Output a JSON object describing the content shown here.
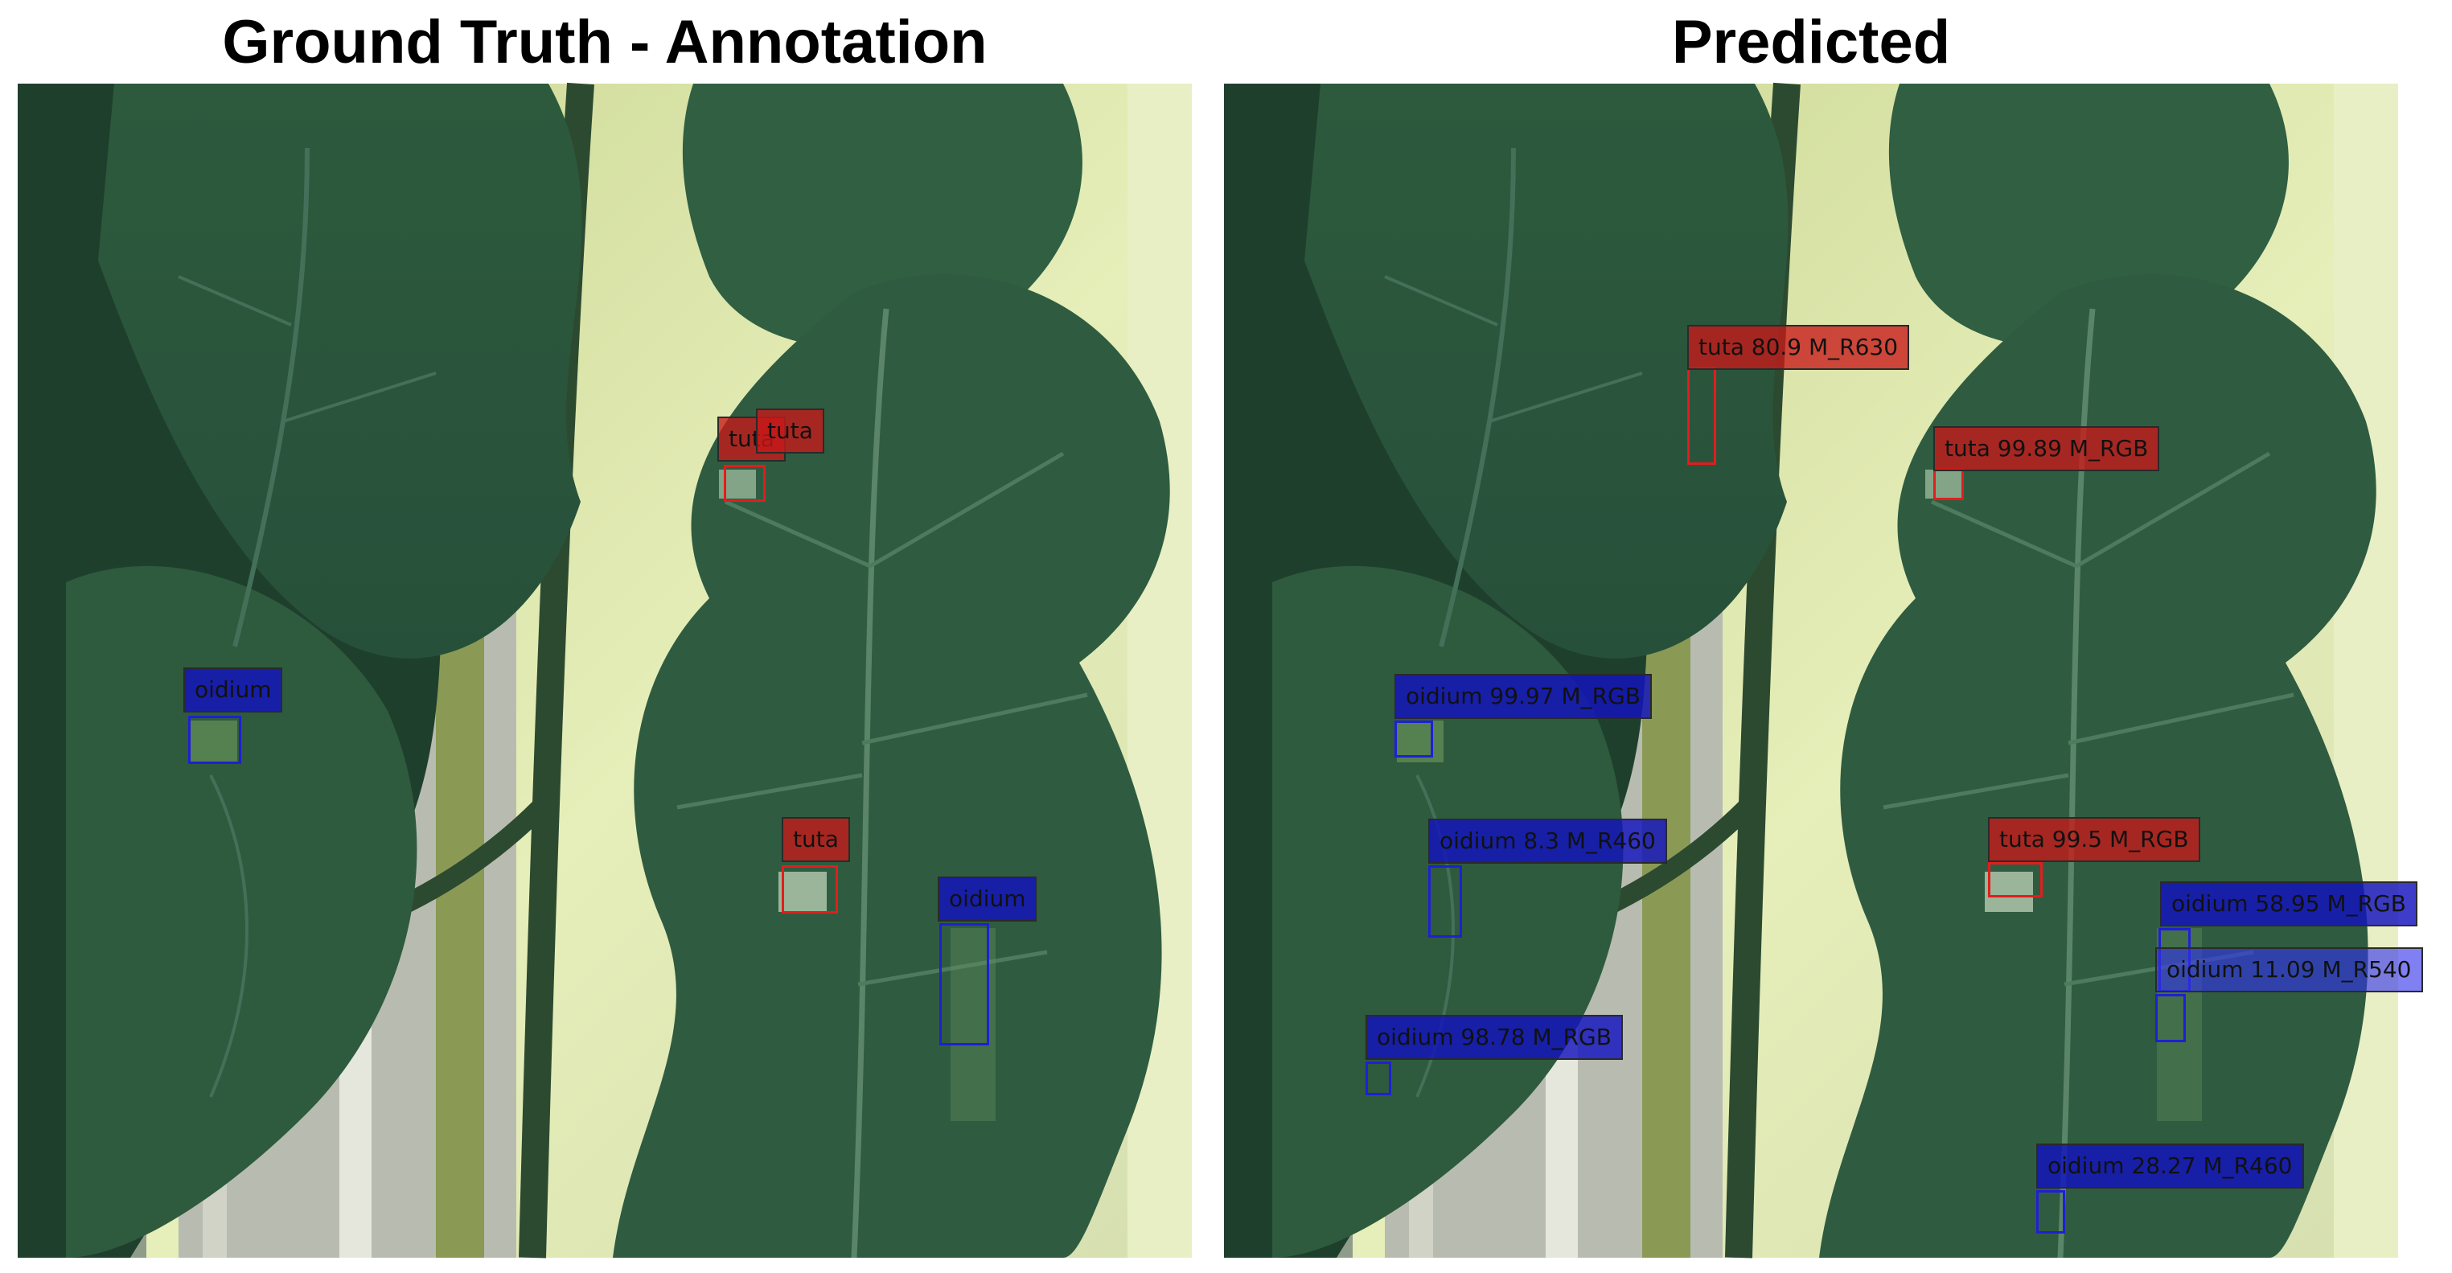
{
  "panels": {
    "left": {
      "title": "Ground Truth - Annotation"
    },
    "right": {
      "title": "Predicted"
    }
  },
  "annotations": [
    {
      "label": "tuta",
      "class": "tuta",
      "color": "#e21d1d"
    },
    {
      "label": "tuta",
      "class": "tuta",
      "color": "#e21d1d"
    },
    {
      "label": "oidium",
      "class": "oidium",
      "color": "#1f1fd6"
    },
    {
      "label": "tuta",
      "class": "tuta",
      "color": "#e21d1d"
    },
    {
      "label": "oidium",
      "class": "oidium",
      "color": "#1f1fd6"
    }
  ],
  "predictions": [
    {
      "label": "tuta 80.9 M_R630",
      "class": "tuta",
      "score": 80.9,
      "model": "M_R630"
    },
    {
      "label": "tuta 99.89 M_RGB",
      "class": "tuta",
      "score": 99.89,
      "model": "M_RGB"
    },
    {
      "label": "oidium 99.97 M_RGB",
      "class": "oidium",
      "score": 99.97,
      "model": "M_RGB"
    },
    {
      "label": "oidium 8.3 M_R460",
      "class": "oidium",
      "score": 8.3,
      "model": "M_R460"
    },
    {
      "label": "tuta 99.5 M_RGB",
      "class": "tuta",
      "score": 99.5,
      "model": "M_RGB"
    },
    {
      "label": "oidium 58.95 M_RGB",
      "class": "oidium",
      "score": 58.95,
      "model": "M_RGB"
    },
    {
      "label": "oidium 11.09 M_R540",
      "class": "oidium",
      "score": 11.09,
      "model": "M_R540"
    },
    {
      "label": "oidium 98.78 M_RGB",
      "class": "oidium",
      "score": 98.78,
      "model": "M_RGB"
    },
    {
      "label": "oidium 28.27 M_R460",
      "class": "oidium",
      "score": 28.27,
      "model": "M_R460"
    }
  ],
  "colors": {
    "tuta": "#e21d1d",
    "oidium": "#1f1fd6",
    "leaf": "#2f5a40",
    "background": "#d9e6a8"
  }
}
